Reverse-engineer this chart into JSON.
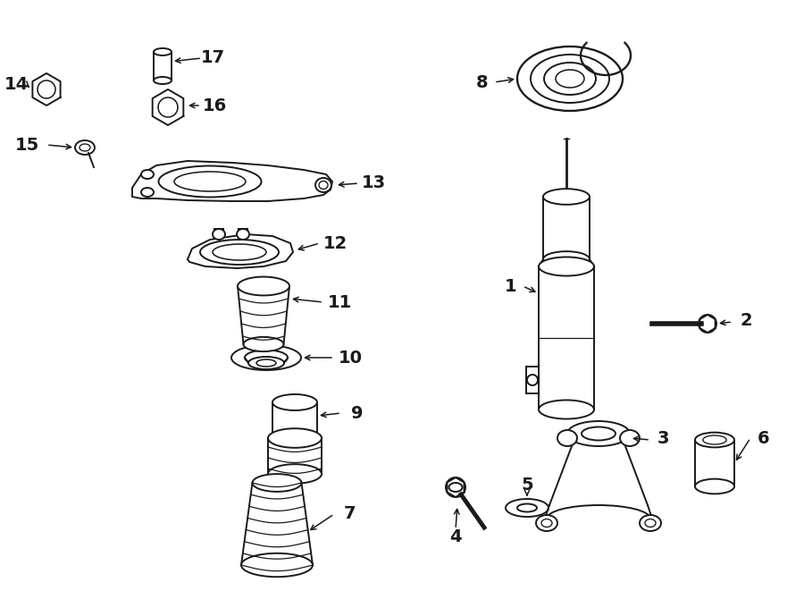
{
  "bg_color": "#ffffff",
  "lc": "#1a1a1a",
  "lw": 1.4,
  "fig_w": 9.0,
  "fig_h": 6.61,
  "dpi": 100
}
